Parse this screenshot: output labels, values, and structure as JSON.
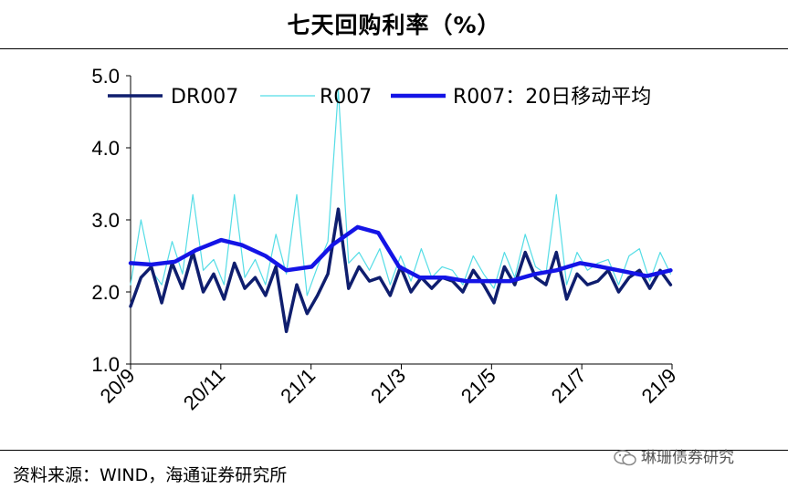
{
  "title": "七天回购利率（%）",
  "source": "资料来源：WIND，海通证券研究所",
  "watermark": "琳珊债券研究",
  "colors": {
    "dr007": "#0f1e6e",
    "r007": "#55dde6",
    "ma20": "#1414e6"
  },
  "chart_data": {
    "type": "line",
    "title": "七天回购利率（%）",
    "xlabel": "",
    "ylabel": "",
    "ylim": [
      1.0,
      5.0
    ],
    "yticks": [
      "1.0",
      "2.0",
      "3.0",
      "4.0",
      "5.0"
    ],
    "xticks": [
      "20/9",
      "20/11",
      "21/1",
      "21/3",
      "21/5",
      "21/7",
      "21/9"
    ],
    "x_range": [
      "2020-09",
      "2021-09"
    ],
    "grid": false,
    "legend": "top",
    "series": [
      {
        "name": "DR007",
        "x": [
          "2020-09-01",
          "2020-09-08",
          "2020-09-15",
          "2020-09-22",
          "2020-09-29",
          "2020-10-06",
          "2020-10-13",
          "2020-10-20",
          "2020-10-27",
          "2020-11-03",
          "2020-11-10",
          "2020-11-17",
          "2020-11-24",
          "2020-12-01",
          "2020-12-08",
          "2020-12-15",
          "2020-12-22",
          "2020-12-29",
          "2021-01-05",
          "2021-01-12",
          "2021-01-19",
          "2021-01-26",
          "2021-02-02",
          "2021-02-09",
          "2021-02-16",
          "2021-02-23",
          "2021-03-02",
          "2021-03-09",
          "2021-03-16",
          "2021-03-23",
          "2021-03-30",
          "2021-04-06",
          "2021-04-13",
          "2021-04-20",
          "2021-04-27",
          "2021-05-04",
          "2021-05-11",
          "2021-05-18",
          "2021-05-25",
          "2021-06-01",
          "2021-06-08",
          "2021-06-15",
          "2021-06-22",
          "2021-06-29",
          "2021-07-06",
          "2021-07-13",
          "2021-07-20",
          "2021-07-27",
          "2021-08-03",
          "2021-08-10",
          "2021-08-17",
          "2021-08-24",
          "2021-08-31"
        ],
        "values": [
          1.8,
          2.2,
          2.35,
          1.85,
          2.4,
          2.05,
          2.55,
          2.0,
          2.25,
          1.9,
          2.4,
          2.05,
          2.2,
          1.95,
          2.35,
          1.45,
          2.1,
          1.7,
          1.95,
          2.25,
          3.15,
          2.05,
          2.35,
          2.15,
          2.2,
          1.95,
          2.35,
          2.0,
          2.2,
          2.05,
          2.2,
          2.15,
          2.0,
          2.3,
          2.1,
          1.85,
          2.35,
          2.1,
          2.55,
          2.2,
          2.1,
          2.55,
          1.9,
          2.25,
          2.1,
          2.15,
          2.3,
          2.0,
          2.2,
          2.3,
          2.05,
          2.3,
          2.1
        ]
      },
      {
        "name": "R007",
        "x": [
          "2020-09-01",
          "2020-09-08",
          "2020-09-15",
          "2020-09-22",
          "2020-09-29",
          "2020-10-06",
          "2020-10-13",
          "2020-10-20",
          "2020-10-27",
          "2020-11-03",
          "2020-11-10",
          "2020-11-17",
          "2020-11-24",
          "2020-12-01",
          "2020-12-08",
          "2020-12-15",
          "2020-12-22",
          "2020-12-29",
          "2021-01-05",
          "2021-01-12",
          "2021-01-19",
          "2021-01-26",
          "2021-02-02",
          "2021-02-09",
          "2021-02-16",
          "2021-02-23",
          "2021-03-02",
          "2021-03-09",
          "2021-03-16",
          "2021-03-23",
          "2021-03-30",
          "2021-04-06",
          "2021-04-13",
          "2021-04-20",
          "2021-04-27",
          "2021-05-04",
          "2021-05-11",
          "2021-05-18",
          "2021-05-25",
          "2021-06-01",
          "2021-06-08",
          "2021-06-15",
          "2021-06-22",
          "2021-06-29",
          "2021-07-06",
          "2021-07-13",
          "2021-07-20",
          "2021-07-27",
          "2021-08-03",
          "2021-08-10",
          "2021-08-17",
          "2021-08-24",
          "2021-08-31"
        ],
        "values": [
          2.1,
          3.0,
          2.3,
          2.1,
          2.7,
          2.25,
          3.35,
          2.3,
          2.45,
          2.1,
          3.35,
          2.2,
          2.45,
          2.1,
          2.8,
          2.25,
          3.35,
          1.95,
          2.35,
          2.7,
          4.8,
          2.4,
          2.55,
          2.3,
          2.6,
          2.1,
          2.5,
          2.15,
          2.6,
          2.2,
          2.35,
          2.3,
          2.1,
          2.5,
          2.25,
          2.05,
          2.55,
          2.2,
          2.8,
          2.35,
          2.25,
          3.35,
          2.1,
          2.55,
          2.3,
          2.4,
          2.45,
          2.1,
          2.5,
          2.6,
          2.15,
          2.55,
          2.25
        ]
      },
      {
        "name": "R007：20日移动平均",
        "x": [
          "2020-09-01",
          "2020-09-15",
          "2020-10-01",
          "2020-10-15",
          "2020-11-01",
          "2020-11-15",
          "2020-12-01",
          "2020-12-15",
          "2021-01-01",
          "2021-01-15",
          "2021-02-01",
          "2021-02-15",
          "2021-03-01",
          "2021-03-15",
          "2021-04-01",
          "2021-04-15",
          "2021-05-01",
          "2021-05-15",
          "2021-06-01",
          "2021-06-15",
          "2021-07-01",
          "2021-07-15",
          "2021-08-01",
          "2021-08-15",
          "2021-08-31"
        ],
        "values": [
          2.4,
          2.38,
          2.42,
          2.58,
          2.72,
          2.65,
          2.5,
          2.3,
          2.35,
          2.65,
          2.9,
          2.82,
          2.35,
          2.2,
          2.2,
          2.15,
          2.15,
          2.15,
          2.25,
          2.3,
          2.4,
          2.35,
          2.28,
          2.22,
          2.3
        ]
      }
    ]
  }
}
